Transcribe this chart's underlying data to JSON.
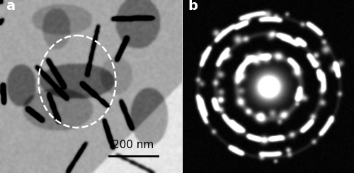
{
  "figsize": [
    5.0,
    2.44
  ],
  "dpi": 100,
  "label_a": "a",
  "label_b": "b",
  "label_fontsize": 14,
  "label_color": "white",
  "scalebar_text": "200 nm",
  "scalebar_text_color": "black",
  "scalebar_fontsize": 11,
  "bg_color_left": "#888888",
  "bg_color_right": "#000000",
  "border_color": "#cccccc",
  "outer_border_color": "#999999"
}
